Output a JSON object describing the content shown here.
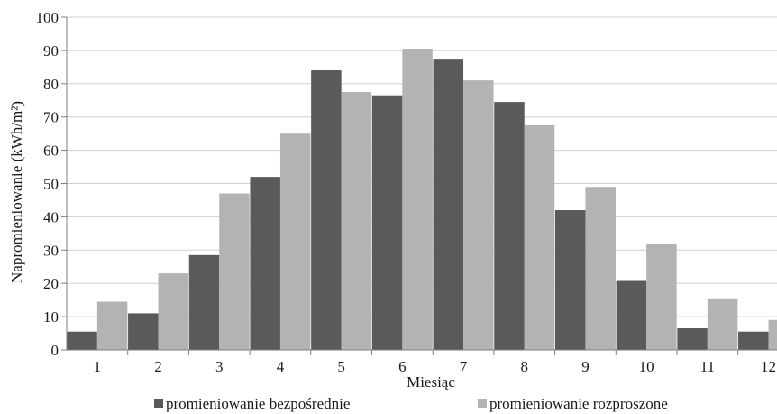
{
  "chart_data": {
    "type": "bar",
    "categories": [
      "1",
      "2",
      "3",
      "4",
      "5",
      "6",
      "7",
      "8",
      "9",
      "10",
      "11",
      "12"
    ],
    "series": [
      {
        "name": "promieniowanie bezpośrednie",
        "color": "#5a5a5a",
        "values": [
          5.5,
          11,
          28.5,
          52,
          84,
          76.5,
          87.5,
          74.5,
          42,
          21,
          6.5,
          5.5
        ]
      },
      {
        "name": "promieniowanie rozproszone",
        "color": "#b3b3b3",
        "values": [
          14.5,
          23,
          47,
          65,
          77.5,
          90.5,
          81,
          67.5,
          49,
          32,
          15.5,
          9
        ]
      }
    ],
    "xlabel": "Miesiąc",
    "ylabel": "Napromieniowanie (kWh/m²)",
    "ylim": [
      0,
      100
    ],
    "yticks": [
      0,
      10,
      20,
      30,
      40,
      50,
      60,
      70,
      80,
      90,
      100
    ],
    "grid": true,
    "legend": "bottom"
  }
}
